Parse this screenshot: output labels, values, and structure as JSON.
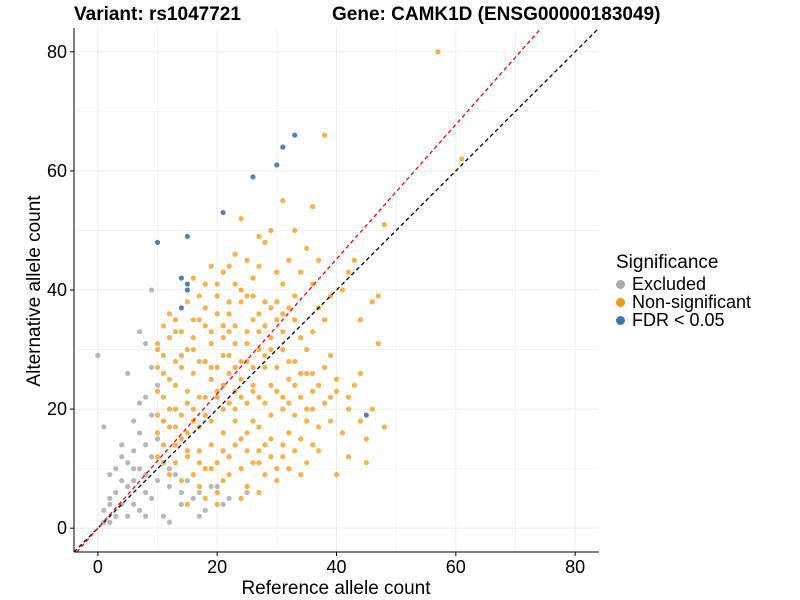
{
  "header": {
    "variant": "Variant: rs1047721",
    "gene": "Gene: CAMK1D (ENSG00000183049)"
  },
  "colors": {
    "excluded": "#aaaaaa",
    "non_significant": "#f5960f",
    "fdr": "#3f74a8",
    "identity_line": "#000000",
    "fit_line": "#ff0000",
    "grid": "#ebebeb"
  },
  "legend": {
    "title": "Significance",
    "items": [
      {
        "label": "Excluded",
        "color": "#aaaaaa"
      },
      {
        "label": "Non-significant",
        "color": "#f5960f"
      },
      {
        "label": "FDR < 0.05",
        "color": "#3f74a8"
      }
    ]
  },
  "chart_data": {
    "type": "scatter",
    "title": "Variant: rs1047721    Gene: CAMK1D (ENSG00000183049)",
    "xlabel": "Reference allele count",
    "ylabel": "Alternative allele count",
    "xlim": [
      -4,
      84
    ],
    "ylim": [
      -4,
      84
    ],
    "xticks": [
      0,
      20,
      40,
      60,
      80
    ],
    "yticks": [
      0,
      20,
      40,
      60,
      80
    ],
    "grid": true,
    "legend_position": "right",
    "reference_lines": [
      {
        "name": "identity",
        "slope": 1,
        "intercept": 0,
        "style": "dashed",
        "color": "#000000"
      },
      {
        "name": "fit",
        "slope": 1.13,
        "intercept": 0,
        "style": "dashed",
        "color": "#ff0000"
      }
    ],
    "series": [
      {
        "name": "Excluded",
        "points": [
          [
            0,
            29
          ],
          [
            1,
            17
          ],
          [
            1,
            3
          ],
          [
            1,
            1
          ],
          [
            2,
            9
          ],
          [
            2,
            5
          ],
          [
            2,
            1
          ],
          [
            3,
            2
          ],
          [
            4,
            14
          ],
          [
            4,
            4
          ],
          [
            5,
            26
          ],
          [
            5,
            11
          ],
          [
            5,
            7
          ],
          [
            6,
            18
          ],
          [
            6,
            13
          ],
          [
            6,
            8
          ],
          [
            7,
            33
          ],
          [
            7,
            21
          ],
          [
            7,
            16
          ],
          [
            7,
            10
          ],
          [
            7,
            3
          ],
          [
            8,
            31
          ],
          [
            8,
            22
          ],
          [
            8,
            14
          ],
          [
            8,
            6
          ],
          [
            8,
            2
          ],
          [
            9,
            40
          ],
          [
            9,
            27
          ],
          [
            9,
            19
          ],
          [
            9,
            12
          ],
          [
            9,
            5
          ],
          [
            10,
            24
          ],
          [
            10,
            15
          ],
          [
            10,
            8
          ],
          [
            11,
            2
          ],
          [
            12,
            10
          ],
          [
            12,
            7
          ],
          [
            12,
            1
          ],
          [
            13,
            9
          ],
          [
            14,
            6
          ],
          [
            14,
            4
          ],
          [
            15,
            8
          ],
          [
            16,
            5
          ],
          [
            17,
            6
          ],
          [
            17,
            2
          ],
          [
            18,
            3
          ],
          [
            19,
            7
          ],
          [
            20,
            7
          ],
          [
            22,
            5
          ],
          [
            21,
            4
          ],
          [
            25,
            6
          ],
          [
            3,
            6
          ],
          [
            4,
            8
          ],
          [
            6,
            10
          ],
          [
            2,
            4
          ],
          [
            3,
            10
          ],
          [
            5,
            2
          ],
          [
            6,
            4
          ],
          [
            4,
            12
          ],
          [
            8,
            9
          ]
        ]
      },
      {
        "name": "Non-significant",
        "points": [
          [
            57,
            80
          ],
          [
            61,
            62
          ],
          [
            38,
            66
          ],
          [
            31,
            55
          ],
          [
            36,
            54
          ],
          [
            29,
            50
          ],
          [
            24,
            52
          ],
          [
            48,
            51
          ],
          [
            33,
            50
          ],
          [
            35,
            47
          ],
          [
            27,
            49
          ],
          [
            28,
            48
          ],
          [
            23,
            46
          ],
          [
            25,
            45
          ],
          [
            22,
            44
          ],
          [
            32,
            45
          ],
          [
            37,
            45
          ],
          [
            43,
            45
          ],
          [
            19,
            44
          ],
          [
            21,
            43
          ],
          [
            26,
            42
          ],
          [
            30,
            43
          ],
          [
            34,
            43
          ],
          [
            42,
            43
          ],
          [
            16,
            42
          ],
          [
            18,
            41
          ],
          [
            31,
            41
          ],
          [
            36,
            41
          ],
          [
            41,
            40
          ],
          [
            17,
            39
          ],
          [
            20,
            39
          ],
          [
            26,
            39
          ],
          [
            33,
            39
          ],
          [
            39,
            39
          ],
          [
            47,
            39
          ],
          [
            15,
            38
          ],
          [
            24,
            38
          ],
          [
            29,
            37
          ],
          [
            37,
            37
          ],
          [
            46,
            38
          ],
          [
            12,
            36
          ],
          [
            22,
            36
          ],
          [
            31,
            36
          ],
          [
            38,
            35
          ],
          [
            44,
            35
          ],
          [
            11,
            34
          ],
          [
            17,
            35
          ],
          [
            28,
            34
          ],
          [
            36,
            33
          ],
          [
            13,
            33
          ],
          [
            21,
            32
          ],
          [
            34,
            32
          ],
          [
            47,
            31
          ],
          [
            10,
            31
          ],
          [
            16,
            30
          ],
          [
            27,
            30
          ],
          [
            39,
            29
          ],
          [
            14,
            29
          ],
          [
            22,
            29
          ],
          [
            32,
            28
          ],
          [
            10,
            27
          ],
          [
            19,
            27
          ],
          [
            28,
            27
          ],
          [
            36,
            26
          ],
          [
            44,
            26
          ],
          [
            12,
            25
          ],
          [
            24,
            25
          ],
          [
            33,
            24
          ],
          [
            43,
            24
          ],
          [
            15,
            23
          ],
          [
            26,
            23
          ],
          [
            40,
            23
          ],
          [
            11,
            22
          ],
          [
            20,
            22
          ],
          [
            31,
            22
          ],
          [
            38,
            21
          ],
          [
            13,
            20
          ],
          [
            23,
            20
          ],
          [
            35,
            20
          ],
          [
            42,
            20
          ],
          [
            10,
            19
          ],
          [
            18,
            19
          ],
          [
            29,
            19
          ],
          [
            16,
            18
          ],
          [
            26,
            18
          ],
          [
            37,
            17
          ],
          [
            12,
            17
          ],
          [
            21,
            16
          ],
          [
            32,
            16
          ],
          [
            41,
            16
          ],
          [
            14,
            15
          ],
          [
            24,
            15
          ],
          [
            34,
            15
          ],
          [
            45,
            15
          ],
          [
            11,
            14
          ],
          [
            19,
            14
          ],
          [
            28,
            14
          ],
          [
            17,
            13
          ],
          [
            27,
            13
          ],
          [
            37,
            13
          ],
          [
            10,
            12
          ],
          [
            15,
            12
          ],
          [
            22,
            12
          ],
          [
            31,
            12
          ],
          [
            42,
            12
          ],
          [
            13,
            11
          ],
          [
            20,
            11
          ],
          [
            26,
            11
          ],
          [
            35,
            11
          ],
          [
            45,
            11
          ],
          [
            18,
            10
          ],
          [
            24,
            10
          ],
          [
            30,
            10
          ],
          [
            12,
            9
          ],
          [
            16,
            9
          ],
          [
            22,
            9
          ],
          [
            28,
            9
          ],
          [
            40,
            9
          ],
          [
            14,
            8
          ],
          [
            21,
            8
          ],
          [
            30,
            8
          ],
          [
            17,
            7
          ],
          [
            25,
            7
          ],
          [
            27,
            6
          ],
          [
            20,
            6
          ],
          [
            18,
            5
          ],
          [
            24,
            5
          ],
          [
            15,
            4
          ],
          [
            20,
            4
          ],
          [
            10,
            30
          ],
          [
            13,
            35
          ],
          [
            18,
            37
          ],
          [
            23,
            34
          ],
          [
            25,
            33
          ],
          [
            27,
            36
          ],
          [
            30,
            38
          ],
          [
            33,
            35
          ],
          [
            35,
            30
          ],
          [
            38,
            27
          ],
          [
            40,
            25
          ],
          [
            42,
            22
          ],
          [
            46,
            20
          ],
          [
            48,
            17
          ],
          [
            11,
            26
          ],
          [
            14,
            27
          ],
          [
            16,
            32
          ],
          [
            19,
            31
          ],
          [
            21,
            29
          ],
          [
            23,
            31
          ],
          [
            25,
            28
          ],
          [
            29,
            32
          ],
          [
            31,
            30
          ],
          [
            33,
            28
          ],
          [
            35,
            26
          ],
          [
            37,
            24
          ],
          [
            39,
            22
          ],
          [
            44,
            18
          ],
          [
            10,
            23
          ],
          [
            13,
            24
          ],
          [
            15,
            21
          ],
          [
            17,
            22
          ],
          [
            19,
            25
          ],
          [
            21,
            24
          ],
          [
            23,
            23
          ],
          [
            25,
            21
          ],
          [
            27,
            22
          ],
          [
            29,
            24
          ],
          [
            31,
            20
          ],
          [
            33,
            19
          ],
          [
            35,
            18
          ],
          [
            39,
            18
          ],
          [
            11,
            18
          ],
          [
            13,
            17
          ],
          [
            15,
            16
          ],
          [
            17,
            17
          ],
          [
            19,
            18
          ],
          [
            21,
            20
          ],
          [
            23,
            18
          ],
          [
            25,
            16
          ],
          [
            27,
            17
          ],
          [
            29,
            15
          ],
          [
            31,
            14
          ],
          [
            33,
            13
          ],
          [
            36,
            14
          ],
          [
            11,
            11
          ],
          [
            13,
            14
          ],
          [
            15,
            13
          ],
          [
            17,
            11
          ],
          [
            19,
            10
          ],
          [
            21,
            13
          ],
          [
            23,
            14
          ],
          [
            25,
            13
          ],
          [
            27,
            11
          ],
          [
            29,
            12
          ],
          [
            32,
            10
          ],
          [
            34,
            9
          ],
          [
            10,
            16
          ],
          [
            12,
            20
          ],
          [
            14,
            19
          ],
          [
            16,
            20
          ],
          [
            18,
            22
          ],
          [
            20,
            23
          ],
          [
            22,
            21
          ],
          [
            24,
            22
          ],
          [
            26,
            24
          ],
          [
            28,
            21
          ],
          [
            30,
            23
          ],
          [
            32,
            21
          ],
          [
            34,
            22
          ],
          [
            36,
            20
          ],
          [
            16,
            26
          ],
          [
            18,
            28
          ],
          [
            20,
            27
          ],
          [
            22,
            26
          ],
          [
            24,
            28
          ],
          [
            26,
            27
          ],
          [
            28,
            29
          ],
          [
            30,
            27
          ],
          [
            32,
            25
          ],
          [
            34,
            26
          ],
          [
            36,
            23
          ],
          [
            11,
            29
          ],
          [
            13,
            28
          ],
          [
            15,
            30
          ],
          [
            17,
            28
          ],
          [
            19,
            33
          ],
          [
            21,
            34
          ],
          [
            23,
            27
          ],
          [
            25,
            31
          ],
          [
            27,
            33
          ],
          [
            29,
            30
          ],
          [
            31,
            33
          ],
          [
            12,
            32
          ],
          [
            14,
            33
          ],
          [
            16,
            35
          ],
          [
            18,
            34
          ],
          [
            20,
            36
          ],
          [
            22,
            38
          ],
          [
            24,
            40
          ],
          [
            26,
            35
          ],
          [
            28,
            38
          ],
          [
            30,
            35
          ],
          [
            32,
            37
          ],
          [
            20,
            41
          ],
          [
            23,
            41
          ],
          [
            27,
            44
          ],
          [
            25,
            39
          ],
          [
            22,
            33
          ]
        ]
      },
      {
        "name": "FDR < 0.05",
        "points": [
          [
            33,
            66
          ],
          [
            31,
            64
          ],
          [
            30,
            61
          ],
          [
            26,
            59
          ],
          [
            21,
            53
          ],
          [
            15,
            49
          ],
          [
            10,
            48
          ],
          [
            14,
            42
          ],
          [
            15,
            41
          ],
          [
            15,
            40
          ],
          [
            14,
            37
          ],
          [
            45,
            19
          ]
        ]
      }
    ]
  }
}
